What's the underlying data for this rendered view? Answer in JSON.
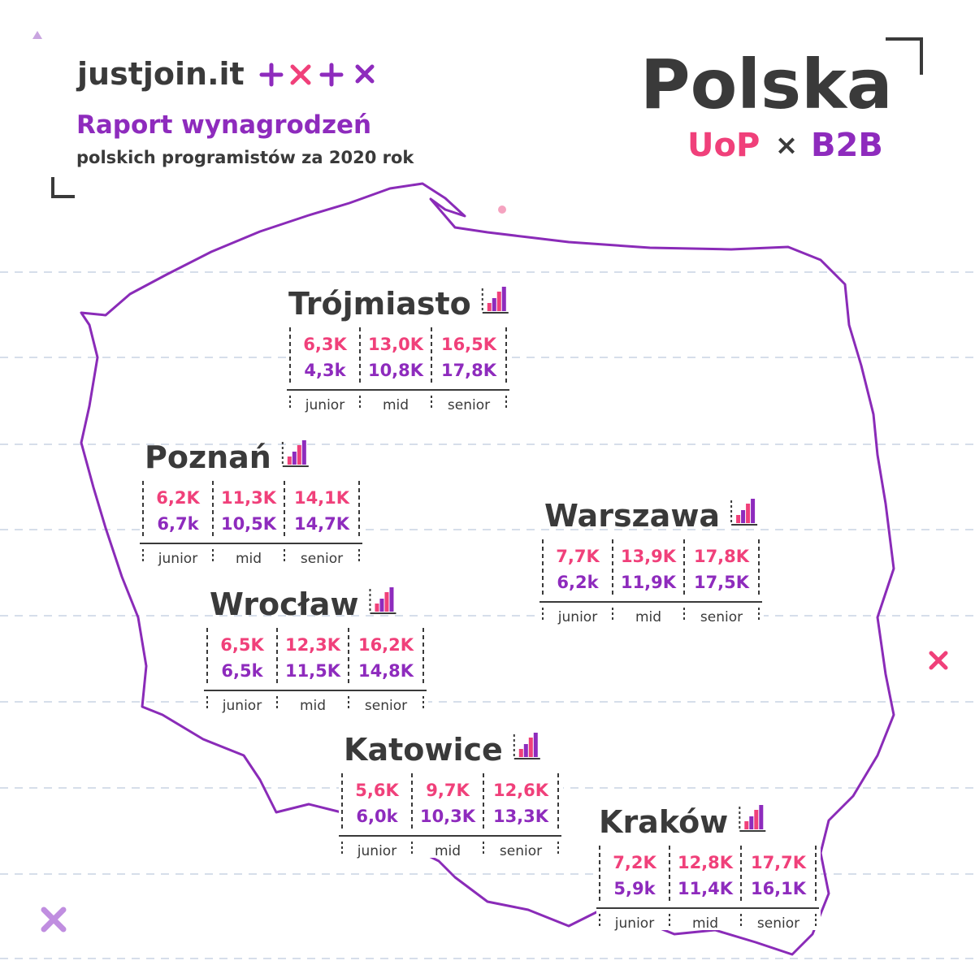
{
  "header": {
    "brand": "justjoin.it",
    "title": "Raport wynagrodzeń",
    "subtitle": "polskich programistów za 2020 rok",
    "country": "Polska",
    "uop": "UoP",
    "separator": "×",
    "b2b": "B2B"
  },
  "cities": [
    {
      "name": "Trójmiasto",
      "uop": [
        "6,3K",
        "13,0K",
        "16,5K"
      ],
      "b2b": [
        "4,3k",
        "10,8K",
        "17,8K"
      ],
      "levels": [
        "junior",
        "mid",
        "senior"
      ]
    },
    {
      "name": "Poznań",
      "uop": [
        "6,2K",
        "11,3K",
        "14,1K"
      ],
      "b2b": [
        "6,7k",
        "10,5K",
        "14,7K"
      ],
      "levels": [
        "junior",
        "mid",
        "senior"
      ]
    },
    {
      "name": "Warszawa",
      "uop": [
        "7,7K",
        "13,9K",
        "17,8K"
      ],
      "b2b": [
        "6,2k",
        "11,9K",
        "17,5K"
      ],
      "levels": [
        "junior",
        "mid",
        "senior"
      ]
    },
    {
      "name": "Wrocław",
      "uop": [
        "6,5K",
        "12,3K",
        "16,2K"
      ],
      "b2b": [
        "6,5k",
        "11,5K",
        "14,8K"
      ],
      "levels": [
        "junior",
        "mid",
        "senior"
      ]
    },
    {
      "name": "Katowice",
      "uop": [
        "5,6K",
        "9,7K",
        "12,6K"
      ],
      "b2b": [
        "6,0k",
        "10,3K",
        "13,3K"
      ],
      "levels": [
        "junior",
        "mid",
        "senior"
      ]
    },
    {
      "name": "Kraków",
      "uop": [
        "7,2K",
        "12,8K",
        "17,7K"
      ],
      "b2b": [
        "5,9k",
        "11,4K",
        "16,1K"
      ],
      "levels": [
        "junior",
        "mid",
        "senior"
      ]
    }
  ]
}
